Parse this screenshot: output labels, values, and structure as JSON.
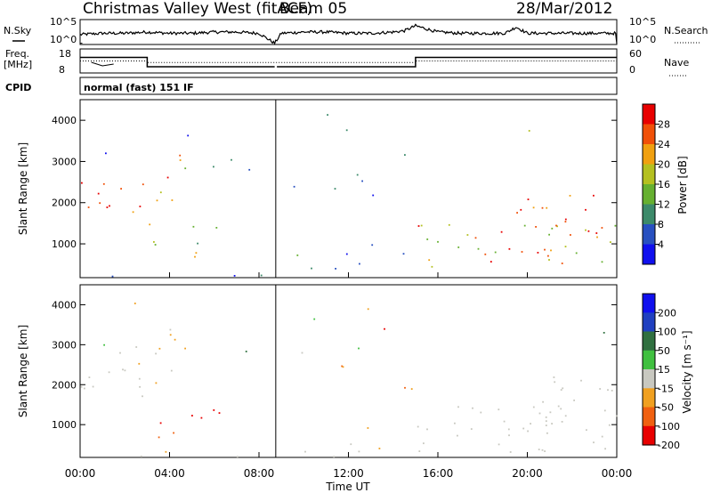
{
  "header": {
    "title": "Christmas Valley West (fitACF)",
    "beam": "Beam 05",
    "date": "28/Mar/2012"
  },
  "top_panels": {
    "nsky_label": "N.Sky",
    "nsky_ticks": [
      "10^5",
      "10^0"
    ],
    "nsearch_label": "N.Search",
    "nsearch_ticks": [
      "10^5",
      "10^0"
    ],
    "freq_label": "Freq.",
    "freq_unit": "[MHz]",
    "freq_ticks": [
      "18",
      "8"
    ],
    "nave_label": "Nave",
    "nave_ticks": [
      "60",
      "0"
    ],
    "cpid_label": "CPID",
    "cpid_value": "normal (fast) 151 IF"
  },
  "axes": {
    "ylabel": "Slant Range [km]",
    "xlabel": "Time UT",
    "power_label": "Power [dB]",
    "velocity_label": "Velocity [m s⁻¹]"
  },
  "colors": {
    "frame": "#000000",
    "grey_ground": "#c8c8c0",
    "power_scale": [
      "#1010ee",
      "#2850c0",
      "#3c8a6a",
      "#66b030",
      "#b4c020",
      "#f0a010",
      "#f05008",
      "#e80000"
    ],
    "velocity_scale": [
      "#1010ee",
      "#2040c0",
      "#307040",
      "#40c040",
      "#c8c8c0",
      "#f0a020",
      "#f06010",
      "#e80000"
    ]
  },
  "chart_data": [
    {
      "type": "line",
      "title": "N.Sky / N.Search",
      "x_unit": "hours UT",
      "ylim_labels": [
        "10^0",
        "10^5"
      ],
      "x": [
        0,
        1,
        2,
        3,
        4,
        5,
        6,
        7,
        8,
        8.7,
        9,
        10,
        11,
        12,
        13,
        14,
        14.5,
        15,
        16,
        17,
        18,
        19,
        19.5,
        20,
        21,
        22,
        23,
        24
      ],
      "series": [
        {
          "name": "N.Sky",
          "values": [
            0.4,
            0.45,
            0.45,
            0.5,
            0.45,
            0.45,
            0.5,
            0.5,
            0.45,
            0.05,
            0.45,
            0.5,
            0.5,
            0.45,
            0.45,
            0.5,
            0.55,
            0.75,
            0.5,
            0.45,
            0.45,
            0.45,
            0.7,
            0.45,
            0.45,
            0.45,
            0.45,
            0.45
          ]
        }
      ]
    },
    {
      "type": "line",
      "title": "Frequency / Nave",
      "x_unit": "hours UT",
      "freq_ylim": [
        8,
        18
      ],
      "nave_ylim": [
        0,
        60
      ],
      "segments": [
        {
          "name": "Freq.",
          "x": [
            0,
            3.0,
            3.0,
            8.7
          ],
          "values": [
            14.5,
            14.5,
            10.6,
            10.6
          ]
        },
        {
          "name": "Freq.",
          "x": [
            8.8,
            15.0,
            15.0,
            24
          ],
          "values": [
            10.6,
            10.6,
            14.5,
            14.5
          ]
        },
        {
          "name": "Nave",
          "x": [
            0,
            3.0,
            3.0,
            15.0,
            15.0,
            24
          ],
          "values": [
            30,
            30,
            26,
            26,
            30,
            30
          ]
        }
      ]
    },
    {
      "type": "heatmap",
      "title": "Power [dB]",
      "xlim": [
        0,
        24
      ],
      "ylim": [
        180,
        4500
      ],
      "x_ticks": [
        "00:00",
        "04:00",
        "08:00",
        "12:00",
        "16:00",
        "20:00",
        "00:00"
      ],
      "y_ticks": [
        "1000",
        "2000",
        "3000",
        "4000"
      ],
      "color_ticks": [
        "4",
        "8",
        "12",
        "16",
        "20",
        "24",
        "28"
      ],
      "color_range": [
        0,
        32
      ]
    },
    {
      "type": "heatmap",
      "title": "Velocity [m s⁻¹]",
      "xlim": [
        0,
        24
      ],
      "ylim": [
        180,
        4500
      ],
      "x_ticks": [
        "00:00",
        "04:00",
        "08:00",
        "12:00",
        "16:00",
        "20:00",
        "00:00"
      ],
      "y_ticks": [
        "1000",
        "2000",
        "3000",
        "4000"
      ],
      "color_ticks": [
        "200",
        "100",
        "50",
        "15",
        "-15",
        "-50",
        "-100",
        "-200"
      ]
    }
  ]
}
